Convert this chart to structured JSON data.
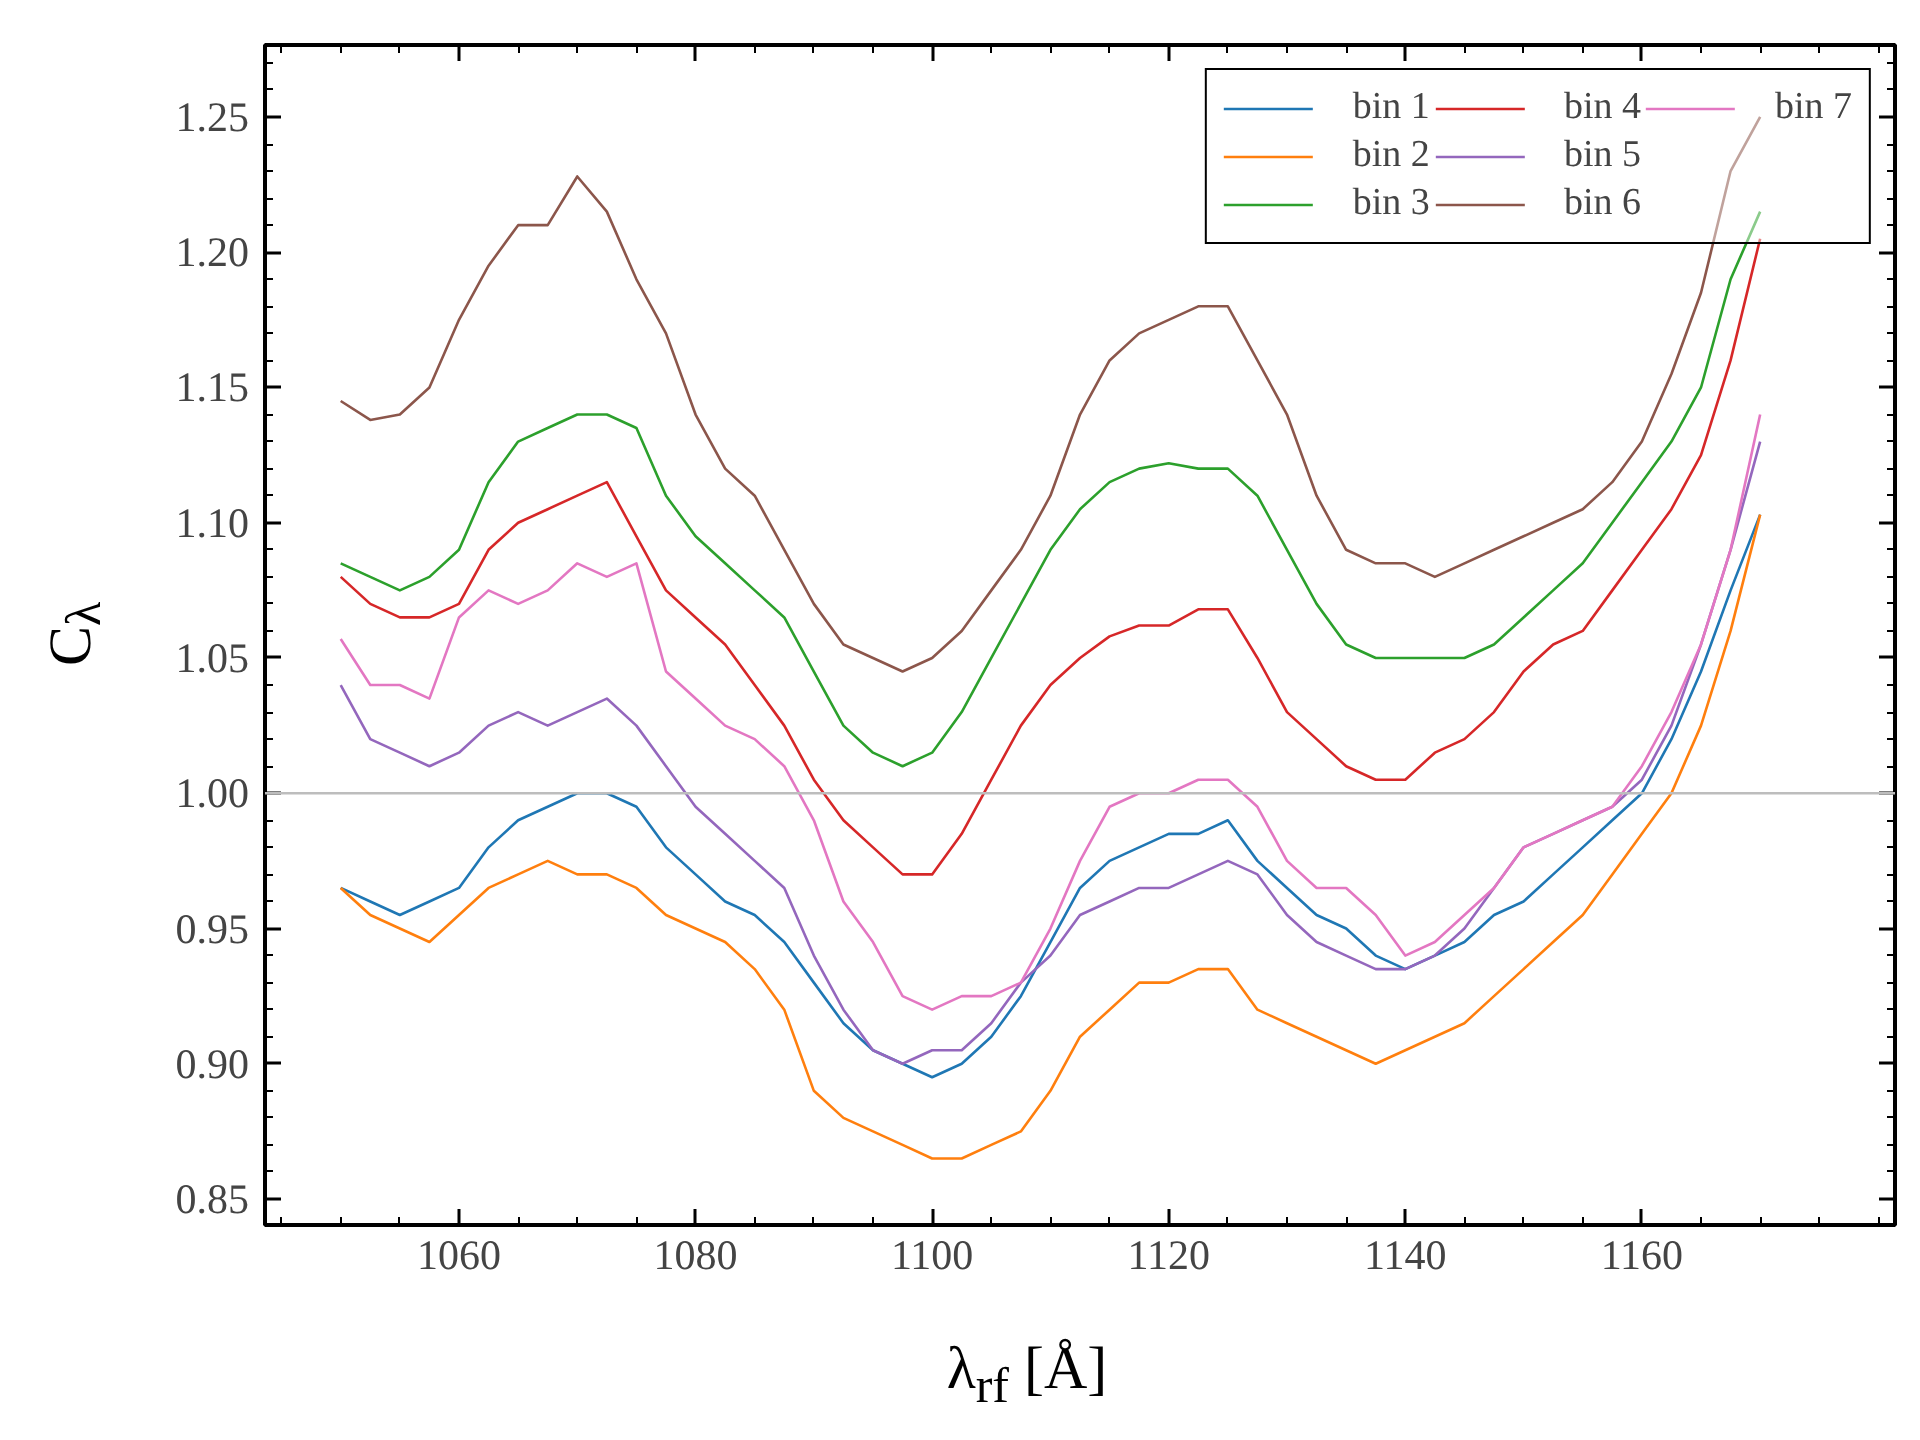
{
  "chart_data": {
    "type": "line",
    "xlabel": "λ$_{rf}$ [Å]",
    "ylabel": "C$_{λ}$",
    "x": [
      1050,
      1052.5,
      1055,
      1057.5,
      1060,
      1062.5,
      1065,
      1067.5,
      1070,
      1072.5,
      1075,
      1077.5,
      1080,
      1082.5,
      1085,
      1087.5,
      1090,
      1092.5,
      1095,
      1097.5,
      1100,
      1102.5,
      1105,
      1107.5,
      1110,
      1112.5,
      1115,
      1117.5,
      1120,
      1122.5,
      1125,
      1127.5,
      1130,
      1132.5,
      1135,
      1137.5,
      1140,
      1142.5,
      1145,
      1147.5,
      1150,
      1152.5,
      1155,
      1157.5,
      1160,
      1162.5,
      1165,
      1167.5,
      1170
    ],
    "xlim": [
      1043.6,
      1181.4
    ],
    "ylim": [
      0.8404,
      1.2766
    ],
    "xticks": [
      1060,
      1080,
      1100,
      1120,
      1140,
      1160
    ],
    "yticks": [
      {
        "value": 0.85,
        "label": "0.85"
      },
      {
        "value": 0.9,
        "label": "0.90"
      },
      {
        "value": 0.95,
        "label": "0.95"
      },
      {
        "value": 1.0,
        "label": "1.00"
      },
      {
        "value": 1.05,
        "label": "1.05"
      },
      {
        "value": 1.1,
        "label": "1.10"
      },
      {
        "value": 1.15,
        "label": "1.15"
      },
      {
        "value": 1.2,
        "label": "1.20"
      },
      {
        "value": 1.25,
        "label": "1.25"
      }
    ],
    "grid": false,
    "legend": "top right",
    "line_style": "solid",
    "marker": "none",
    "ref_lines": [
      {
        "axis": "y",
        "value": 1.0,
        "color": "#bdbdbd"
      }
    ],
    "series": [
      {
        "name": "bin 1",
        "color": "#1f77b4",
        "values": [
          0.965,
          0.96,
          0.955,
          0.96,
          0.965,
          0.98,
          0.99,
          0.995,
          1.0,
          1.0,
          0.995,
          0.98,
          0.97,
          0.96,
          0.955,
          0.945,
          0.93,
          0.915,
          0.905,
          0.9,
          0.895,
          0.9,
          0.91,
          0.925,
          0.945,
          0.965,
          0.975,
          0.98,
          0.985,
          0.985,
          0.99,
          0.975,
          0.965,
          0.955,
          0.95,
          0.94,
          0.935,
          0.94,
          0.945,
          0.955,
          0.96,
          0.97,
          0.98,
          0.99,
          1.0,
          1.02,
          1.045,
          1.075,
          1.103
        ]
      },
      {
        "name": "bin 2",
        "color": "#ff7f0e",
        "values": [
          0.965,
          0.955,
          0.95,
          0.945,
          0.955,
          0.965,
          0.97,
          0.975,
          0.97,
          0.97,
          0.965,
          0.955,
          0.95,
          0.945,
          0.935,
          0.92,
          0.89,
          0.88,
          0.875,
          0.87,
          0.865,
          0.865,
          0.87,
          0.875,
          0.89,
          0.91,
          0.92,
          0.93,
          0.93,
          0.935,
          0.935,
          0.92,
          0.915,
          0.91,
          0.905,
          0.9,
          0.905,
          0.91,
          0.915,
          0.925,
          0.935,
          0.945,
          0.955,
          0.97,
          0.985,
          1.0,
          1.025,
          1.06,
          1.103
        ]
      },
      {
        "name": "bin 3",
        "color": "#2ca02c",
        "values": [
          1.085,
          1.08,
          1.075,
          1.08,
          1.09,
          1.115,
          1.13,
          1.135,
          1.14,
          1.14,
          1.135,
          1.11,
          1.095,
          1.085,
          1.075,
          1.065,
          1.045,
          1.025,
          1.015,
          1.01,
          1.015,
          1.03,
          1.05,
          1.07,
          1.09,
          1.105,
          1.115,
          1.12,
          1.122,
          1.12,
          1.12,
          1.11,
          1.09,
          1.07,
          1.055,
          1.05,
          1.05,
          1.05,
          1.05,
          1.055,
          1.065,
          1.075,
          1.085,
          1.1,
          1.115,
          1.13,
          1.15,
          1.19,
          1.215
        ]
      },
      {
        "name": "bin 4",
        "color": "#d62728",
        "values": [
          1.08,
          1.07,
          1.065,
          1.065,
          1.07,
          1.09,
          1.1,
          1.105,
          1.11,
          1.115,
          1.095,
          1.075,
          1.065,
          1.055,
          1.04,
          1.025,
          1.005,
          0.99,
          0.98,
          0.97,
          0.97,
          0.985,
          1.005,
          1.025,
          1.04,
          1.05,
          1.058,
          1.062,
          1.062,
          1.068,
          1.068,
          1.05,
          1.03,
          1.02,
          1.01,
          1.005,
          1.005,
          1.015,
          1.02,
          1.03,
          1.045,
          1.055,
          1.06,
          1.075,
          1.09,
          1.105,
          1.125,
          1.16,
          1.205
        ]
      },
      {
        "name": "bin 5",
        "color": "#9467bd",
        "values": [
          1.04,
          1.02,
          1.015,
          1.01,
          1.015,
          1.025,
          1.03,
          1.025,
          1.03,
          1.035,
          1.025,
          1.01,
          0.995,
          0.985,
          0.975,
          0.965,
          0.94,
          0.92,
          0.905,
          0.9,
          0.905,
          0.905,
          0.915,
          0.93,
          0.94,
          0.955,
          0.96,
          0.965,
          0.965,
          0.97,
          0.975,
          0.97,
          0.955,
          0.945,
          0.94,
          0.935,
          0.935,
          0.94,
          0.95,
          0.965,
          0.98,
          0.985,
          0.99,
          0.995,
          1.005,
          1.025,
          1.055,
          1.09,
          1.13
        ]
      },
      {
        "name": "bin 6",
        "color": "#8c564b",
        "values": [
          1.145,
          1.138,
          1.14,
          1.15,
          1.175,
          1.195,
          1.21,
          1.21,
          1.228,
          1.215,
          1.19,
          1.17,
          1.14,
          1.12,
          1.11,
          1.09,
          1.07,
          1.055,
          1.05,
          1.045,
          1.05,
          1.06,
          1.075,
          1.09,
          1.11,
          1.14,
          1.16,
          1.17,
          1.175,
          1.18,
          1.18,
          1.16,
          1.14,
          1.11,
          1.09,
          1.085,
          1.085,
          1.08,
          1.085,
          1.09,
          1.095,
          1.1,
          1.105,
          1.115,
          1.13,
          1.155,
          1.185,
          1.23,
          1.25
        ]
      },
      {
        "name": "bin 7",
        "color": "#e377c2",
        "values": [
          1.057,
          1.04,
          1.04,
          1.035,
          1.065,
          1.075,
          1.07,
          1.075,
          1.085,
          1.08,
          1.085,
          1.045,
          1.035,
          1.025,
          1.02,
          1.01,
          0.99,
          0.96,
          0.945,
          0.925,
          0.92,
          0.925,
          0.925,
          0.93,
          0.95,
          0.975,
          0.995,
          1.0,
          1.0,
          1.005,
          1.005,
          0.995,
          0.975,
          0.965,
          0.965,
          0.955,
          0.94,
          0.945,
          0.955,
          0.965,
          0.98,
          0.985,
          0.99,
          0.995,
          1.01,
          1.03,
          1.055,
          1.09,
          1.14
        ]
      }
    ]
  }
}
